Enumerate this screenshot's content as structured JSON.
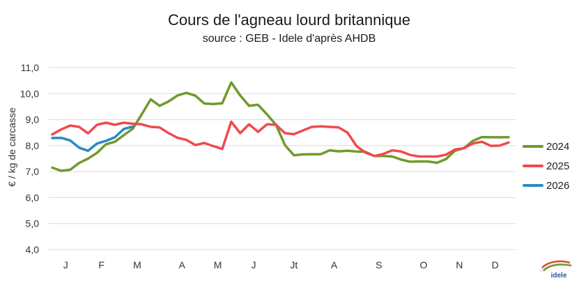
{
  "chart_data": {
    "type": "line",
    "title": "Cours de l'agneau lourd britannique",
    "subtitle": "source : GEB - Idele d'après AHDB",
    "xlabel": "",
    "ylabel": "€ / kg de carcasse",
    "ylim": [
      4.0,
      11.0
    ],
    "yticks": [
      "4,0",
      "5,0",
      "6,0",
      "7,0",
      "8,0",
      "9,0",
      "10,0",
      "11,0"
    ],
    "ytick_values": [
      4,
      5,
      6,
      7,
      8,
      9,
      10,
      11
    ],
    "x_unit": "week",
    "xlim": [
      1,
      52
    ],
    "month_labels": [
      "J",
      "F",
      "M",
      "A",
      "M",
      "J",
      "Jt",
      "A",
      "S",
      "O",
      "N",
      "D"
    ],
    "month_positions": [
      2.5,
      6.5,
      10.5,
      15.5,
      19.5,
      23.5,
      28,
      32.5,
      37.5,
      42.5,
      46.5,
      50.5
    ],
    "grid": true,
    "legend_position": "right",
    "series": [
      {
        "name": "2024",
        "color": "#6f9a2c",
        "x": [
          1,
          2,
          3,
          4,
          5,
          6,
          7,
          8,
          9,
          10,
          11,
          12,
          13,
          14,
          15,
          16,
          17,
          18,
          19,
          20,
          21,
          22,
          23,
          24,
          25,
          26,
          27,
          28,
          29,
          30,
          31,
          32,
          33,
          34,
          35,
          36,
          37,
          38,
          39,
          40,
          41,
          42,
          43,
          44,
          45,
          46,
          47,
          48,
          49,
          50,
          51,
          52
        ],
        "values": [
          7.15,
          7.03,
          7.07,
          7.33,
          7.5,
          7.72,
          8.05,
          8.15,
          8.4,
          8.65,
          9.2,
          9.78,
          9.53,
          9.7,
          9.93,
          10.03,
          9.92,
          9.62,
          9.6,
          9.63,
          10.43,
          9.93,
          9.53,
          9.57,
          9.2,
          8.8,
          8.02,
          7.63,
          7.66,
          7.67,
          7.67,
          7.82,
          7.78,
          7.8,
          7.77,
          7.76,
          7.6,
          7.6,
          7.58,
          7.46,
          7.38,
          7.39,
          7.39,
          7.34,
          7.48,
          7.8,
          7.9,
          8.18,
          8.33,
          8.32,
          8.32,
          8.32
        ]
      },
      {
        "name": "2025",
        "color": "#f04a4e",
        "x": [
          1,
          2,
          3,
          4,
          5,
          6,
          7,
          8,
          9,
          10,
          11,
          12,
          13,
          14,
          15,
          16,
          17,
          18,
          19,
          20,
          21,
          22,
          23,
          24,
          25,
          26,
          27,
          28,
          29,
          30,
          31,
          32,
          33,
          34,
          35,
          36,
          37,
          38,
          39,
          40,
          41,
          42,
          43,
          44,
          45,
          46,
          47,
          48,
          49,
          50,
          51,
          52
        ],
        "values": [
          8.43,
          8.62,
          8.77,
          8.72,
          8.47,
          8.8,
          8.88,
          8.8,
          8.88,
          8.84,
          8.82,
          8.72,
          8.7,
          8.48,
          8.3,
          8.22,
          8.02,
          8.1,
          7.98,
          7.87,
          8.92,
          8.48,
          8.82,
          8.53,
          8.82,
          8.8,
          8.48,
          8.44,
          8.58,
          8.72,
          8.74,
          8.72,
          8.7,
          8.5,
          7.98,
          7.73,
          7.6,
          7.68,
          7.82,
          7.77,
          7.64,
          7.58,
          7.58,
          7.58,
          7.65,
          7.85,
          7.9,
          8.08,
          8.15,
          7.99,
          8.0,
          8.12
        ]
      },
      {
        "name": "2026",
        "color": "#2a8ac2",
        "x": [
          1,
          2,
          3,
          4,
          5,
          6,
          7,
          8,
          9,
          10
        ],
        "values": [
          8.29,
          8.3,
          8.2,
          7.92,
          7.8,
          8.08,
          8.18,
          8.32,
          8.64,
          8.73
        ]
      }
    ]
  },
  "logo": {
    "name": "idele-logo",
    "text": "idele"
  }
}
